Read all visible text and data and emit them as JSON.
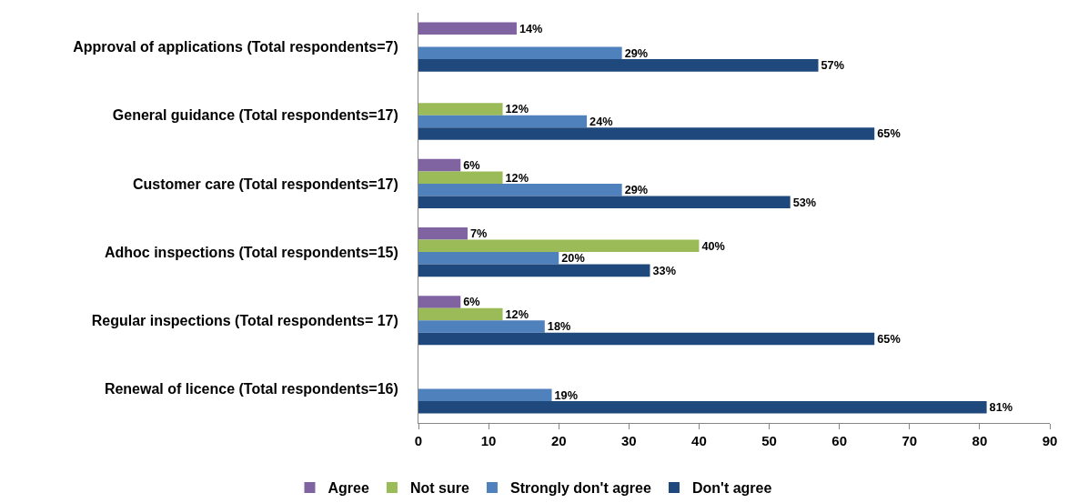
{
  "chart_data": {
    "type": "bar",
    "orientation": "horizontal",
    "categories": [
      "Approval of applications (Total respondents=7)",
      "General guidance (Total respondents=17)",
      "Customer care (Total respondents=17)",
      "Adhoc inspections (Total respondents=15)",
      "Regular inspections (Total respondents= 17)",
      "Renewal of licence (Total respondents=16)"
    ],
    "series": [
      {
        "name": "Agree",
        "color": "#8064a2",
        "values": [
          14,
          null,
          6,
          7,
          6,
          null
        ],
        "value_labels": [
          "14%",
          null,
          "6%",
          "7%",
          "6%",
          null
        ]
      },
      {
        "name": "Not sure",
        "color": "#9bbb59",
        "values": [
          null,
          12,
          12,
          40,
          12,
          null
        ],
        "value_labels": [
          null,
          "12%",
          "12%",
          "40%",
          "12%",
          null
        ]
      },
      {
        "name": "Strongly don't agree",
        "color": "#4f81bd",
        "values": [
          29,
          24,
          29,
          20,
          18,
          19
        ],
        "value_labels": [
          "29%",
          "24%",
          "29%",
          "20%",
          "18%",
          "19%"
        ]
      },
      {
        "name": "Don't agree",
        "color": "#1f497d",
        "values": [
          57,
          65,
          53,
          33,
          65,
          81
        ],
        "value_labels": [
          "57%",
          "65%",
          "53%",
          "33%",
          "65%",
          "81%"
        ]
      }
    ],
    "xlim": [
      0,
      90
    ],
    "xticks": [
      0,
      10,
      20,
      30,
      40,
      50,
      60,
      70,
      80,
      90
    ],
    "legend": "bottom"
  }
}
